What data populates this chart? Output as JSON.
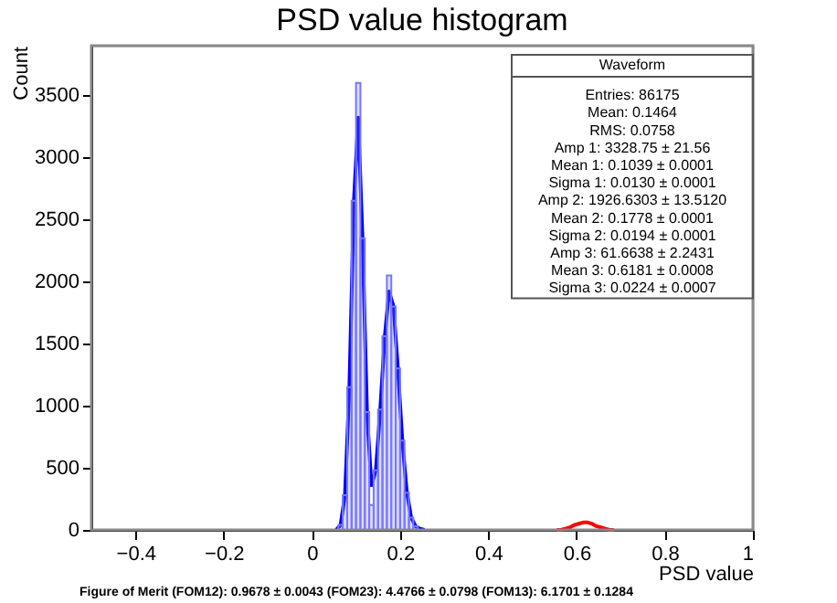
{
  "chart_data": {
    "type": "histogram",
    "title": "PSD value histogram",
    "xlabel": "PSD value",
    "ylabel": "Count",
    "bins": [
      0.06,
      0.07,
      0.08,
      0.09,
      0.1,
      0.11,
      0.12,
      0.13,
      0.14,
      0.15,
      0.16,
      0.17,
      0.18,
      0.19,
      0.2,
      0.21,
      0.22,
      0.23,
      0.24
    ],
    "values": [
      40,
      280,
      1150,
      2650,
      3600,
      2350,
      950,
      200,
      480,
      970,
      1560,
      2050,
      1800,
      1300,
      720,
      300,
      100,
      30
    ],
    "color": "#7777ff",
    "series": [
      {
        "type": "line",
        "color": "#0000ff",
        "x": [
          0.055,
          0.065,
          0.075,
          0.085,
          0.095,
          0.105,
          0.115,
          0.125,
          0.135,
          0.145,
          0.155,
          0.165,
          0.175,
          0.185,
          0.195,
          0.205,
          0.215,
          0.225,
          0.235,
          0.245,
          0.255
        ],
        "values": [
          0,
          40,
          280,
          1150,
          2630,
          3320,
          2320,
          940,
          360,
          480,
          970,
          1550,
          1920,
          1800,
          1300,
          720,
          310,
          100,
          30,
          10,
          0
        ]
      },
      {
        "type": "line",
        "color": "#ff0000",
        "x": [
          0.555,
          0.565,
          0.575,
          0.585,
          0.595,
          0.605,
          0.615,
          0.625,
          0.635,
          0.645,
          0.655,
          0.665,
          0.675,
          0.685
        ],
        "values": [
          0,
          0,
          10,
          20,
          40,
          50,
          60,
          60,
          50,
          30,
          20,
          10,
          0,
          0
        ]
      }
    ],
    "xlim": [
      -0.5,
      1
    ],
    "xticks": [
      -0.4,
      -0.2,
      0,
      0.2,
      0.4,
      0.6,
      0.8,
      1
    ],
    "ylim": [
      0,
      3900
    ],
    "yticks": [
      0,
      500,
      1000,
      1500,
      2000,
      2500,
      3000,
      3500
    ],
    "grid": false,
    "annotations": [
      "Waveform",
      "Entries: 86175",
      "Mean: 0.1464",
      "RMS: 0.0758",
      "Amp 1: 3328.75 ± 21.56",
      "Mean 1: 0.1039 ± 0.0001",
      "Sigma 1: 0.0130 ± 0.0001",
      "Amp 2: 1926.6303 ± 13.5120",
      "Mean 2: 0.1778 ± 0.0001",
      "Sigma 2: 0.0194 ± 0.0001",
      "Amp 3: 61.6638 ± 2.2431",
      "Mean 3: 0.6181 ± 0.0008",
      "Sigma 3: 0.0224 ± 0.0007",
      "Figure of Merit (FOM12): 0.9678 ± 0.0043 (FOM23): 4.4766 ± 0.0798 (FOM13): 6.1701 ± 0.1284"
    ]
  }
}
